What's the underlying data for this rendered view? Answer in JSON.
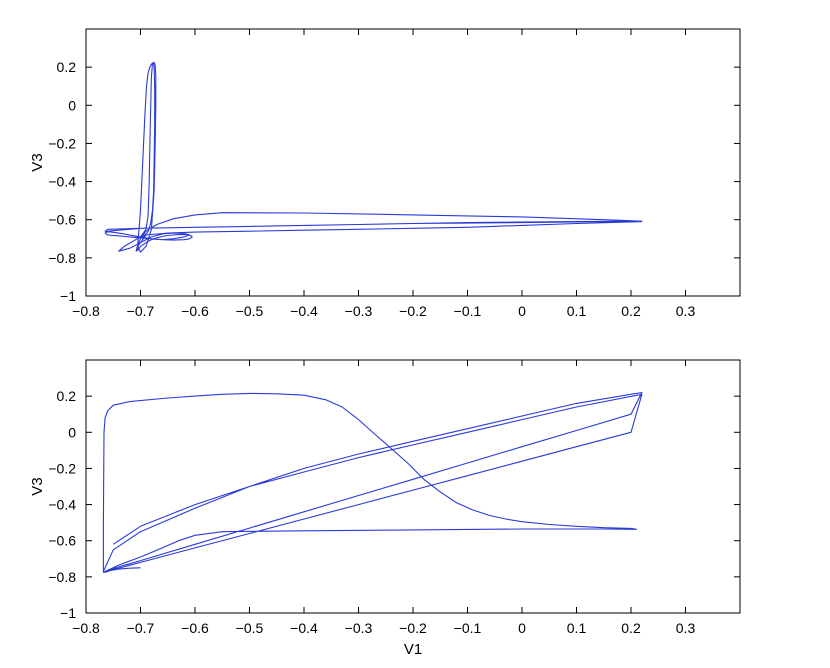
{
  "chart_data": [
    {
      "type": "line",
      "title": "",
      "xlabel": "",
      "ylabel": "V3",
      "xlim": [
        -0.8,
        0.4
      ],
      "ylim": [
        -1,
        0.4
      ],
      "xticks": [
        -0.8,
        -0.7,
        -0.6,
        -0.5,
        -0.4,
        -0.3,
        -0.2,
        -0.1,
        0,
        0.1,
        0.2,
        0.3
      ],
      "xtick_labels": [
        "−0.8",
        "−0.7",
        "−0.6",
        "−0.5",
        "−0.4",
        "−0.3",
        "−0.2",
        "−0.1",
        "0",
        "0.1",
        "0.2",
        "0.3"
      ],
      "yticks": [
        -1,
        -0.8,
        -0.6,
        -0.4,
        -0.2,
        0,
        0.2
      ],
      "ytick_labels": [
        "−1",
        "−0.8",
        "−0.6",
        "−0.4",
        "−0.2",
        "0",
        "0.2"
      ],
      "grid": false,
      "line_color": "#2a3bd6",
      "series": [
        {
          "x": [
            -0.706,
            -0.704,
            -0.7,
            -0.696,
            -0.692,
            -0.689,
            -0.686,
            -0.683,
            -0.68,
            -0.678,
            -0.676,
            -0.675,
            -0.674,
            -0.674,
            -0.675,
            -0.676,
            -0.678,
            -0.681,
            -0.684,
            -0.688,
            -0.692,
            -0.696,
            -0.7,
            -0.705,
            -0.708,
            -0.705,
            -0.7,
            -0.69,
            -0.68,
            -0.67,
            -0.66,
            -0.65,
            -0.64,
            -0.63,
            -0.62,
            -0.61,
            -0.605,
            -0.61,
            -0.62,
            -0.64,
            -0.66,
            -0.68,
            -0.7,
            -0.72,
            -0.74,
            -0.76,
            -0.765,
            -0.76,
            -0.74,
            -0.7,
            -0.6,
            -0.5,
            -0.4,
            -0.3,
            -0.2,
            -0.1,
            0.0,
            0.1,
            0.2,
            0.22,
            0.2,
            0.1,
            0.0,
            -0.1,
            -0.2,
            -0.3,
            -0.4,
            -0.5,
            -0.6,
            -0.65,
            -0.69,
            -0.705,
            -0.7,
            -0.69,
            -0.68,
            -0.675,
            -0.673,
            -0.672,
            -0.672,
            -0.673,
            -0.675,
            -0.678,
            -0.68,
            -0.682,
            -0.684,
            -0.686,
            -0.69,
            -0.7,
            -0.73,
            -0.74,
            -0.72,
            -0.7,
            -0.68,
            -0.66,
            -0.64,
            -0.62,
            -0.61,
            -0.62,
            -0.64,
            -0.66,
            -0.68,
            -0.7,
            -0.74,
            -0.765,
            -0.76,
            -0.7,
            -0.6,
            -0.5,
            -0.4,
            -0.3,
            -0.2,
            -0.1,
            0.0,
            0.1,
            0.22,
            0.15,
            0.0,
            -0.2,
            -0.4,
            -0.55,
            -0.6,
            -0.64,
            -0.67,
            -0.69,
            -0.7
          ],
          "y": [
            -0.76,
            -0.7,
            -0.55,
            -0.3,
            -0.05,
            0.1,
            0.17,
            0.2,
            0.215,
            0.222,
            0.22,
            0.2,
            0.1,
            -0.1,
            -0.3,
            -0.45,
            -0.55,
            -0.61,
            -0.65,
            -0.67,
            -0.68,
            -0.69,
            -0.7,
            -0.73,
            -0.765,
            -0.76,
            -0.74,
            -0.72,
            -0.705,
            -0.695,
            -0.688,
            -0.683,
            -0.68,
            -0.678,
            -0.677,
            -0.68,
            -0.69,
            -0.7,
            -0.705,
            -0.707,
            -0.705,
            -0.7,
            -0.695,
            -0.69,
            -0.685,
            -0.68,
            -0.67,
            -0.66,
            -0.655,
            -0.645,
            -0.64,
            -0.635,
            -0.63,
            -0.625,
            -0.62,
            -0.618,
            -0.615,
            -0.612,
            -0.61,
            -0.61,
            -0.612,
            -0.62,
            -0.63,
            -0.64,
            -0.645,
            -0.65,
            -0.655,
            -0.66,
            -0.665,
            -0.67,
            -0.68,
            -0.74,
            -0.77,
            -0.74,
            -0.65,
            -0.45,
            -0.2,
            0.0,
            0.15,
            0.21,
            0.225,
            0.22,
            0.15,
            -0.1,
            -0.4,
            -0.58,
            -0.65,
            -0.69,
            -0.74,
            -0.765,
            -0.75,
            -0.72,
            -0.69,
            -0.675,
            -0.67,
            -0.672,
            -0.68,
            -0.69,
            -0.7,
            -0.705,
            -0.7,
            -0.69,
            -0.67,
            -0.66,
            -0.65,
            -0.645,
            -0.64,
            -0.635,
            -0.63,
            -0.625,
            -0.62,
            -0.615,
            -0.612,
            -0.61,
            -0.608,
            -0.6,
            -0.585,
            -0.575,
            -0.565,
            -0.563,
            -0.575,
            -0.595,
            -0.625,
            -0.66,
            -0.7
          ]
        }
      ]
    },
    {
      "type": "line",
      "title": "",
      "xlabel": "V1",
      "ylabel": "V3",
      "xlim": [
        -0.8,
        0.4
      ],
      "ylim": [
        -1,
        0.4
      ],
      "xticks": [
        -0.8,
        -0.7,
        -0.6,
        -0.5,
        -0.4,
        -0.3,
        -0.2,
        -0.1,
        0,
        0.1,
        0.2,
        0.3
      ],
      "xtick_labels": [
        "−0.8",
        "−0.7",
        "−0.6",
        "−0.5",
        "−0.4",
        "−0.3",
        "−0.2",
        "−0.1",
        "0",
        "0.1",
        "0.2",
        "0.3"
      ],
      "yticks": [
        -1,
        -0.8,
        -0.6,
        -0.4,
        -0.2,
        0,
        0.2
      ],
      "ytick_labels": [
        "−1",
        "−0.8",
        "−0.6",
        "−0.4",
        "−0.2",
        "0",
        "0.2"
      ],
      "grid": false,
      "line_color": "#2a3bd6",
      "series": [
        {
          "x": [
            -0.7,
            -0.72,
            -0.74,
            -0.755,
            -0.765,
            -0.76,
            -0.74,
            -0.7,
            -0.6,
            -0.5,
            -0.4,
            -0.3,
            -0.2,
            -0.1,
            0.0,
            0.1,
            0.2,
            0.22,
            0.1,
            0.0,
            -0.1,
            -0.2,
            -0.3,
            -0.4,
            -0.5,
            -0.6,
            -0.7,
            -0.75,
            -0.768,
            -0.768,
            -0.767,
            -0.765,
            -0.76,
            -0.75,
            -0.72,
            -0.65,
            -0.6,
            -0.55,
            -0.5,
            -0.45,
            -0.4,
            -0.36,
            -0.33,
            -0.3,
            -0.27,
            -0.24,
            -0.21,
            -0.18,
            -0.15,
            -0.12,
            -0.09,
            -0.06,
            -0.03,
            0.0,
            0.05,
            0.1,
            0.15,
            0.2,
            0.21,
            0.15,
            0.0,
            -0.2,
            -0.4,
            -0.55,
            -0.6,
            -0.63,
            -0.66,
            -0.7,
            -0.74,
            -0.768,
            -0.7,
            -0.6,
            -0.5,
            -0.4,
            -0.3,
            -0.2,
            -0.1,
            0.0,
            0.1,
            0.2,
            0.22,
            0.1,
            0.0,
            -0.1,
            -0.2,
            -0.3,
            -0.4,
            -0.5,
            -0.6,
            -0.7,
            -0.75
          ],
          "y": [
            -0.75,
            -0.752,
            -0.757,
            -0.765,
            -0.775,
            -0.765,
            -0.745,
            -0.71,
            -0.62,
            -0.53,
            -0.44,
            -0.35,
            -0.26,
            -0.17,
            -0.08,
            0.01,
            0.1,
            0.22,
            0.16,
            0.09,
            0.02,
            -0.05,
            -0.12,
            -0.2,
            -0.3,
            -0.42,
            -0.55,
            -0.65,
            -0.77,
            -0.5,
            0.0,
            0.08,
            0.12,
            0.15,
            0.17,
            0.19,
            0.2,
            0.21,
            0.215,
            0.213,
            0.205,
            0.18,
            0.14,
            0.07,
            -0.01,
            -0.09,
            -0.17,
            -0.26,
            -0.33,
            -0.39,
            -0.43,
            -0.46,
            -0.48,
            -0.495,
            -0.51,
            -0.52,
            -0.528,
            -0.532,
            -0.537,
            -0.535,
            -0.535,
            -0.54,
            -0.545,
            -0.55,
            -0.57,
            -0.6,
            -0.64,
            -0.69,
            -0.735,
            -0.775,
            -0.72,
            -0.64,
            -0.56,
            -0.48,
            -0.4,
            -0.32,
            -0.24,
            -0.16,
            -0.08,
            0.0,
            0.21,
            0.14,
            0.07,
            0.0,
            -0.07,
            -0.14,
            -0.22,
            -0.3,
            -0.4,
            -0.52,
            -0.62
          ]
        }
      ]
    }
  ]
}
